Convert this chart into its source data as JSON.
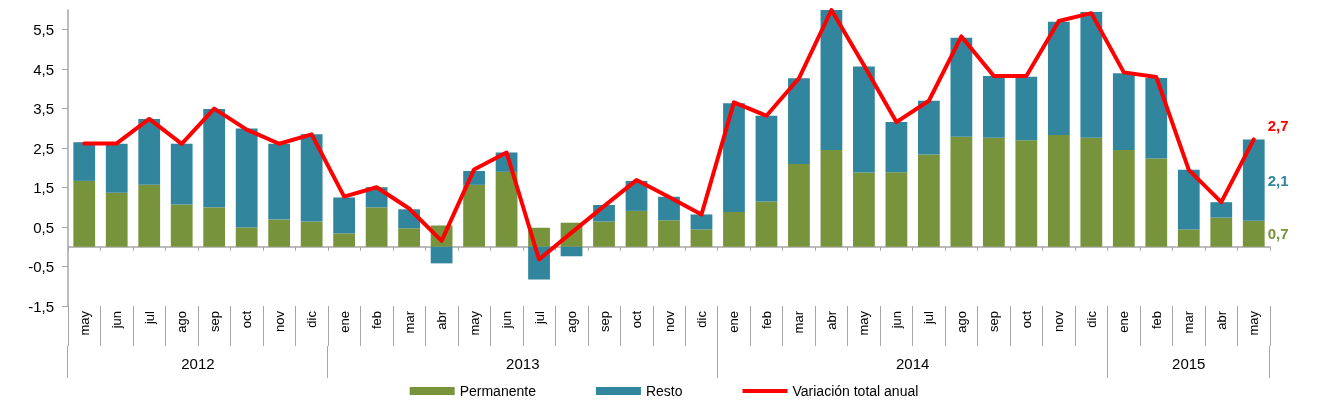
{
  "chart_data": {
    "type": "bar",
    "stacked": true,
    "categories": [
      "may",
      "jun",
      "jul",
      "ago",
      "sep",
      "oct",
      "nov",
      "dic",
      "ene",
      "feb",
      "mar",
      "abr",
      "may",
      "jun",
      "jul",
      "ago",
      "sep",
      "oct",
      "nov",
      "dic",
      "ene",
      "feb",
      "mar",
      "abr",
      "may",
      "jun",
      "jul",
      "ago",
      "sep",
      "oct",
      "nov",
      "dic",
      "ene",
      "feb",
      "mar",
      "abr",
      "may"
    ],
    "series": [
      {
        "name": "Permanente",
        "color": "#77933c",
        "values": [
          1.67,
          1.37,
          1.57,
          1.07,
          1.0,
          0.49,
          0.69,
          0.64,
          0.34,
          1.0,
          0.47,
          0.54,
          1.57,
          1.9,
          0.48,
          0.61,
          0.64,
          0.91,
          0.67,
          0.44,
          0.88,
          1.15,
          2.1,
          2.45,
          1.88,
          1.89,
          2.34,
          2.79,
          2.76,
          2.7,
          2.83,
          2.76,
          2.45,
          2.24,
          0.44,
          0.74,
          0.66
        ],
        "value_labels": [
          null,
          null,
          null,
          null,
          null,
          null,
          null,
          null,
          null,
          null,
          null,
          null,
          null,
          null,
          null,
          null,
          null,
          null,
          null,
          null,
          null,
          null,
          null,
          null,
          null,
          null,
          null,
          null,
          null,
          null,
          null,
          null,
          null,
          null,
          null,
          null,
          "0,7"
        ]
      },
      {
        "name": "Resto",
        "color": "#31859c",
        "values": [
          0.98,
          1.24,
          1.67,
          1.54,
          2.49,
          2.51,
          1.92,
          2.21,
          0.91,
          0.51,
          0.48,
          -0.42,
          0.35,
          0.49,
          -0.83,
          -0.24,
          0.42,
          0.76,
          0.6,
          0.38,
          2.76,
          2.17,
          2.17,
          3.55,
          2.69,
          1.27,
          1.36,
          2.51,
          1.57,
          1.61,
          2.87,
          3.19,
          1.95,
          2.04,
          1.51,
          0.39,
          2.06
        ],
        "value_labels": [
          null,
          null,
          null,
          null,
          null,
          null,
          null,
          null,
          null,
          null,
          null,
          null,
          null,
          null,
          null,
          null,
          null,
          null,
          null,
          null,
          null,
          null,
          null,
          null,
          null,
          null,
          null,
          null,
          null,
          null,
          null,
          null,
          null,
          null,
          null,
          null,
          "2,1"
        ]
      },
      {
        "name": "Variación total anual",
        "type": "line",
        "color": "#ff0000",
        "values": [
          2.62,
          2.62,
          3.24,
          2.61,
          3.5,
          2.97,
          2.61,
          2.85,
          1.27,
          1.51,
          0.97,
          0.15,
          1.96,
          2.39,
          -0.32,
          0.36,
          1.03,
          1.69,
          1.26,
          0.82,
          3.66,
          3.32,
          4.27,
          6.0,
          4.6,
          3.16,
          3.7,
          5.33,
          4.33,
          4.33,
          5.72,
          5.92,
          4.42,
          4.3,
          1.95,
          1.13,
          2.72
        ],
        "value_labels": [
          null,
          null,
          null,
          null,
          null,
          null,
          null,
          null,
          null,
          null,
          null,
          null,
          null,
          null,
          null,
          null,
          null,
          null,
          null,
          null,
          null,
          null,
          null,
          null,
          null,
          null,
          null,
          null,
          null,
          null,
          null,
          null,
          null,
          null,
          null,
          null,
          "2,7"
        ]
      }
    ],
    "ylim": [
      -1.5,
      6
    ],
    "yticks": [
      {
        "value": -1.5,
        "label": "-1,5"
      },
      {
        "value": -0.5,
        "label": "-0,5"
      },
      {
        "value": 0.5,
        "label": "0,5"
      },
      {
        "value": 1.5,
        "label": "1,5"
      },
      {
        "value": 2.5,
        "label": "2,5"
      },
      {
        "value": 3.5,
        "label": "3,5"
      },
      {
        "value": 4.5,
        "label": "4,5"
      },
      {
        "value": 5.5,
        "label": "5,5"
      }
    ],
    "annotations": [
      "2012",
      "2013",
      "2014",
      "2015"
    ],
    "legend": "bottom",
    "marker": "none"
  }
}
